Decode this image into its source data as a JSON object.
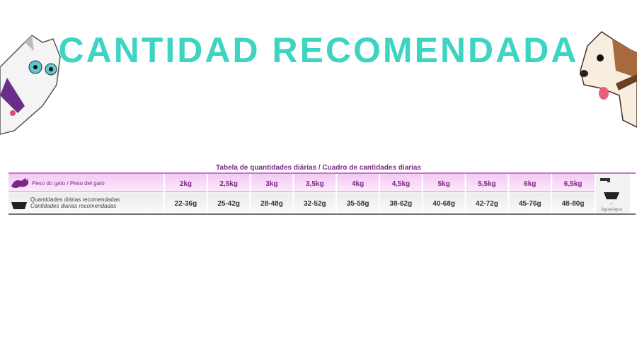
{
  "header": {
    "title": "CANTIDAD RECOMENDADA"
  },
  "table": {
    "title": "Tabela de quantidades diárias / Cuadro de cantidades diarias",
    "weight_label": "Peso do gato / Peso del gato",
    "amount_label": [
      "Quantidades diárias recomendadas",
      "Cantidades diarias recomendadas"
    ],
    "weights": [
      "2kg",
      "2,5kg",
      "3kg",
      "3,5kg",
      "4kg",
      "4,5kg",
      "5kg",
      "5,5kg",
      "6kg",
      "6,5kg"
    ],
    "amounts": [
      "22-36g",
      "25-42g",
      "28-48g",
      "32-52g",
      "35-58g",
      "38-62g",
      "40-68g",
      "42-72g",
      "45-76g",
      "48-80g"
    ],
    "water_label": [
      "+",
      "Água/Agua"
    ]
  }
}
